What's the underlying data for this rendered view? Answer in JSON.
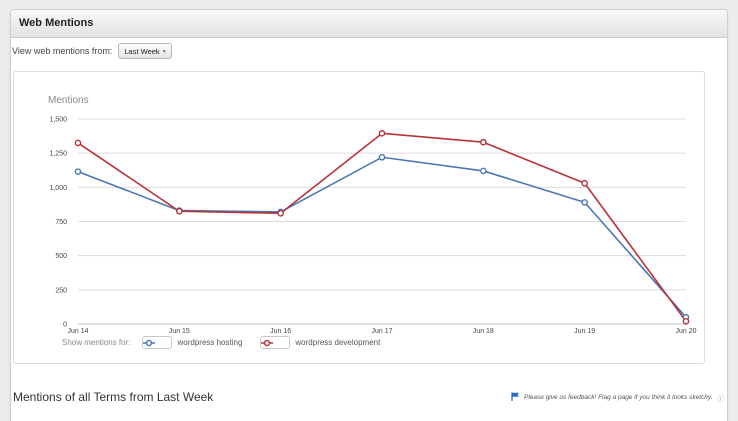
{
  "panel": {
    "title": "Web Mentions"
  },
  "filter": {
    "label": "View web mentions from:",
    "selected": "Last Week"
  },
  "legend": {
    "label": "Show mentions for:",
    "items": [
      "wordpress hosting",
      "wordpress development"
    ]
  },
  "lower": {
    "title": "Mentions of all Terms from Last Week"
  },
  "feedback": {
    "text": "Please give us feedback! Flag a page if you think it looks sketchy."
  },
  "chart_data": {
    "type": "line",
    "title": "Mentions",
    "categories": [
      "Jun 14",
      "Jun 15",
      "Jun 16",
      "Jun 17",
      "Jun 18",
      "Jun 19",
      "Jun 20"
    ],
    "series": [
      {
        "name": "wordpress hosting",
        "color": "#4a77b4",
        "values": [
          1115,
          830,
          820,
          1220,
          1120,
          890,
          50
        ]
      },
      {
        "name": "wordpress development",
        "color": "#b8323a",
        "values": [
          1325,
          825,
          810,
          1395,
          1330,
          1030,
          20
        ]
      }
    ],
    "ylim": [
      0,
      1500
    ],
    "yticks": [
      0,
      250,
      500,
      750,
      1000,
      1250,
      1500
    ],
    "ytick_labels": [
      "0",
      "250",
      "500",
      "750",
      "1,000",
      "1,250",
      "1,500"
    ],
    "grid": true,
    "legend_position": "bottom-left"
  }
}
